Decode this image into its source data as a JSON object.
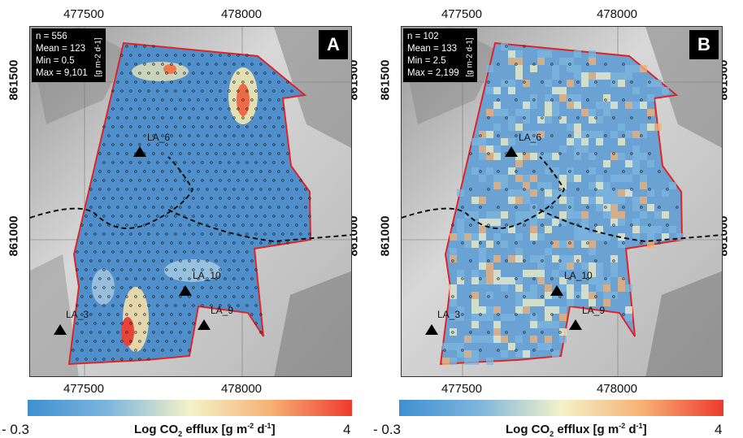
{
  "axes": {
    "x_ticks": [
      "477500",
      "478000"
    ],
    "y_ticks": [
      "861500",
      "861000"
    ]
  },
  "panels": [
    {
      "letter": "A",
      "stats": {
        "n": "n = 556",
        "mean": "Mean = 123",
        "min": "Min = 0.5",
        "max": "Max = 9,101"
      },
      "unit": "[g m-2 d-1]",
      "stations": [
        "LA_6",
        "LA_10",
        "LA_3",
        "LA_9"
      ]
    },
    {
      "letter": "B",
      "stats": {
        "n": "n = 102",
        "mean": "Mean = 133",
        "min": "Min = 2.5",
        "max": "Max = 2,199"
      },
      "unit": "[g m-2 d-1]",
      "stations": [
        "LA_6",
        "LA_10",
        "LA_3",
        "LA_9"
      ]
    }
  ],
  "colorbar": {
    "min_label": "- 0.3",
    "max_label": "4",
    "title_prefix": "Log CO",
    "title_sub": "2",
    "title_mid": " efflux [g m",
    "title_sup1": "-2",
    "title_mid2": " d",
    "title_sup2": "-1",
    "title_end": "]",
    "colors": [
      "#3f8fd1",
      "#7eb6de",
      "#f4f2c8",
      "#f7b174",
      "#ee3a2d"
    ]
  }
}
